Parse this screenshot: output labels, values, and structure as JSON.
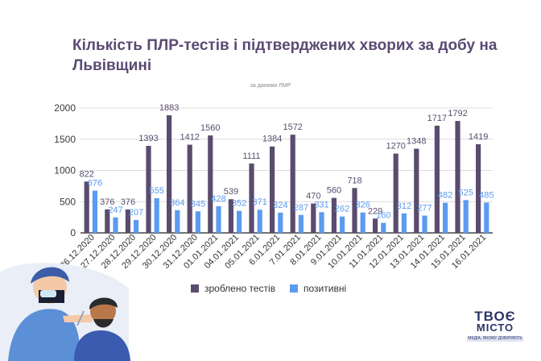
{
  "chart_data": {
    "type": "bar",
    "title": "Кількість ПЛР-тестів і підтверджених хворих за добу на Львівщині",
    "subtitle": "за даними ЛМР",
    "categories": [
      "26.12.2020",
      "27.12.2020",
      "28.12.2020",
      "29.12.2020",
      "30.12.2020",
      "31.12.2020",
      "01.01.2021",
      "04.01.2021",
      "05.01.2021",
      "6.01.2021",
      "7.01.2021",
      "8.01.2021",
      "9.01.2021",
      "10.01.2021",
      "11.01.2021",
      "12.01.2021",
      "13.01.2021",
      "14.01.2021",
      "15.01.2021",
      "16.01.2021"
    ],
    "series": [
      {
        "name": "зроблено тестів",
        "color": "#5a4c6e",
        "values": [
          822,
          376,
          376,
          1393,
          1883,
          1412,
          1560,
          539,
          1111,
          1384,
          1572,
          470,
          560,
          718,
          229,
          1270,
          1348,
          1717,
          1792,
          1419
        ]
      },
      {
        "name": "позитивні",
        "color": "#5b9bf0",
        "values": [
          676,
          247,
          207,
          555,
          364,
          345,
          428,
          352,
          371,
          324,
          287,
          331,
          262,
          326,
          160,
          312,
          277,
          482,
          525,
          485
        ]
      }
    ],
    "ylim": [
      0,
      2000
    ],
    "yticks": [
      0,
      500,
      1000,
      1500,
      2000
    ],
    "grid": true,
    "legend": "bottom"
  },
  "logo": {
    "line1": "ТВОЄ",
    "line2": "МІСТО",
    "tagline": "МЕДІА, ЯКОМУ ДОВІРЯЮТЬ"
  },
  "illustration": {
    "icon": "pcr-swab-test-illustration"
  }
}
